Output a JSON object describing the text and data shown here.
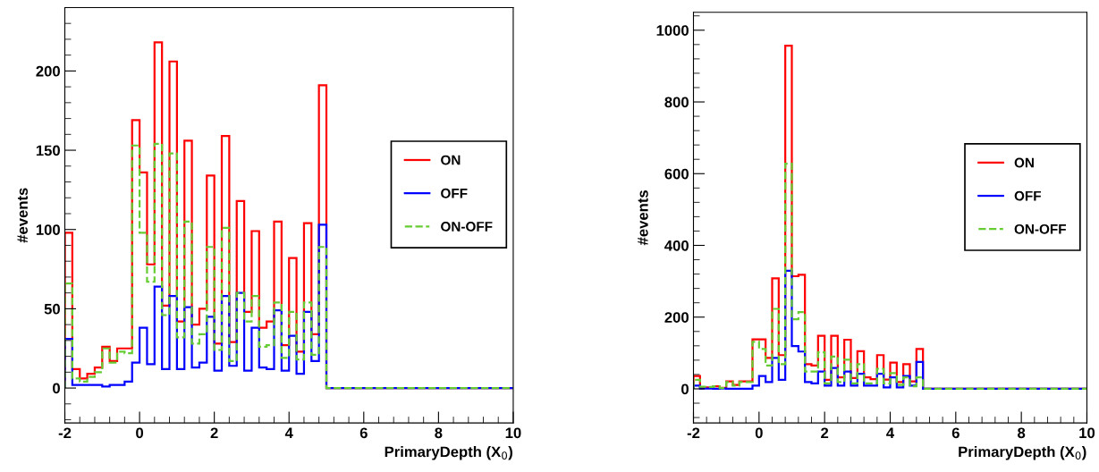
{
  "chart_data": [
    {
      "type": "histogram",
      "xlabel": "PrimaryDepth (X$_{0}$)",
      "ylabel": "#events",
      "bins": [
        -2,
        -1.8,
        -1.6,
        -1.4,
        -1.2,
        -1,
        -0.8,
        -0.6,
        -0.4,
        -0.2,
        0,
        0.2,
        0.4,
        0.6,
        0.8,
        1,
        1.2,
        1.4,
        1.6,
        1.8,
        2,
        2.2,
        2.4,
        2.6,
        2.8,
        3,
        3.2,
        3.4,
        3.6,
        3.8,
        4,
        4.2,
        4.4,
        4.6,
        4.8,
        5,
        5.2,
        5.4,
        5.6,
        5.8,
        6,
        6.2,
        6.4,
        6.6,
        6.8,
        7,
        7.2,
        7.4,
        7.6,
        7.8,
        8,
        8.2,
        8.4,
        8.6,
        8.8,
        9,
        9.2,
        9.4,
        9.6,
        9.8,
        10
      ],
      "series": [
        {
          "name": "ON",
          "color": "#ff0000",
          "line_style": "solid",
          "values": [
            98,
            12,
            6,
            9,
            13,
            26,
            17,
            25,
            25,
            169,
            136,
            78,
            218,
            52,
            206,
            42,
            156,
            40,
            50,
            134,
            28,
            159,
            29,
            118,
            48,
            99,
            38,
            42,
            105,
            27,
            82,
            23,
            104,
            34,
            191,
            0,
            0,
            0,
            0,
            0,
            0,
            0,
            0,
            0,
            0,
            0,
            0,
            0,
            0,
            0,
            0,
            0,
            0,
            0,
            0,
            0,
            0,
            0,
            0,
            0
          ]
        },
        {
          "name": "OFF",
          "color": "#0000ff",
          "line_style": "solid",
          "values": [
            31,
            2,
            2,
            2,
            2,
            1,
            2,
            2,
            4,
            16,
            38,
            15,
            64,
            12,
            58,
            12,
            51,
            13,
            16,
            45,
            11,
            58,
            14,
            60,
            11,
            38,
            13,
            12,
            49,
            11,
            33,
            9,
            48,
            17,
            103,
            0,
            0,
            0,
            0,
            0,
            0,
            0,
            0,
            0,
            0,
            0,
            0,
            0,
            0,
            0,
            0,
            0,
            0,
            0,
            0,
            0,
            0,
            0,
            0,
            0
          ]
        },
        {
          "name": "ON-OFF",
          "color": "#66cc33",
          "line_style": "dashed",
          "values": [
            66,
            6,
            4,
            7,
            10,
            25,
            16,
            23,
            22,
            153,
            98,
            67,
            154,
            46,
            148,
            32,
            105,
            28,
            34,
            89,
            24,
            101,
            17,
            60,
            42,
            58,
            26,
            27,
            54,
            19,
            48,
            18,
            54,
            21,
            89,
            0,
            0,
            0,
            0,
            0,
            0,
            0,
            0,
            0,
            0,
            0,
            0,
            0,
            0,
            0,
            0,
            0,
            0,
            0,
            0,
            0,
            0,
            0,
            0,
            0
          ]
        }
      ],
      "xlim": [
        -2,
        10
      ],
      "xticks": [
        -2,
        0,
        2,
        4,
        6,
        8,
        10
      ],
      "ylim": [
        -22,
        240
      ],
      "yticks": [
        0,
        50,
        100,
        150,
        200
      ],
      "legend": "right",
      "grid": false
    },
    {
      "type": "histogram",
      "xlabel": "PrimaryDepth (X$_{0}$)",
      "ylabel": "#events",
      "bins": [
        -2,
        -1.8,
        -1.6,
        -1.4,
        -1.2,
        -1,
        -0.8,
        -0.6,
        -0.4,
        -0.2,
        0,
        0.2,
        0.4,
        0.6,
        0.8,
        1,
        1.2,
        1.4,
        1.6,
        1.8,
        2,
        2.2,
        2.4,
        2.6,
        2.8,
        3,
        3.2,
        3.4,
        3.6,
        3.8,
        4,
        4.2,
        4.4,
        4.6,
        4.8,
        5,
        5.2,
        5.4,
        5.6,
        5.8,
        6,
        6.2,
        6.4,
        6.6,
        6.8,
        7,
        7.2,
        7.4,
        7.6,
        7.8,
        8,
        8.2,
        8.4,
        8.6,
        8.8,
        9,
        9.2,
        9.4,
        9.6,
        9.8,
        10
      ],
      "series": [
        {
          "name": "ON",
          "color": "#ff0000",
          "line_style": "solid",
          "values": [
            36,
            4,
            4,
            7,
            3,
            21,
            11,
            21,
            21,
            138,
            138,
            86,
            308,
            94,
            957,
            314,
            318,
            69,
            65,
            148,
            25,
            148,
            32,
            137,
            30,
            105,
            32,
            27,
            94,
            26,
            73,
            19,
            69,
            21,
            111,
            0,
            0,
            0,
            0,
            0,
            0,
            0,
            0,
            0,
            0,
            0,
            0,
            0,
            0,
            0,
            0,
            0,
            0,
            0,
            0,
            0,
            0,
            0,
            0,
            0
          ]
        },
        {
          "name": "OFF",
          "color": "#0000ff",
          "line_style": "solid",
          "values": [
            9,
            1,
            1,
            0,
            1,
            0,
            0,
            0,
            0,
            9,
            36,
            19,
            86,
            25,
            329,
            119,
            104,
            19,
            15,
            48,
            9,
            58,
            9,
            48,
            9,
            42,
            9,
            9,
            42,
            4,
            32,
            4,
            36,
            9,
            75,
            0,
            0,
            0,
            0,
            0,
            0,
            0,
            0,
            0,
            0,
            0,
            0,
            0,
            0,
            0,
            0,
            0,
            0,
            0,
            0,
            0,
            0,
            0,
            0,
            0
          ]
        },
        {
          "name": "ON-OFF",
          "color": "#66cc33",
          "line_style": "dashed",
          "values": [
            25,
            6,
            5,
            7,
            2,
            19,
            9,
            19,
            19,
            131,
            111,
            65,
            223,
            69,
            628,
            194,
            214,
            48,
            48,
            102,
            15,
            90,
            19,
            81,
            15,
            69,
            15,
            15,
            56,
            15,
            44,
            11,
            32,
            7,
            32,
            0,
            0,
            0,
            0,
            0,
            0,
            0,
            0,
            0,
            0,
            0,
            0,
            0,
            0,
            0,
            0,
            0,
            0,
            0,
            0,
            0,
            0,
            0,
            0,
            0
          ]
        }
      ],
      "xlim": [
        -2,
        10
      ],
      "xticks": [
        -2,
        0,
        2,
        4,
        6,
        8,
        10
      ],
      "ylim": [
        -95,
        1050
      ],
      "yticks": [
        0,
        200,
        400,
        600,
        800,
        1000
      ],
      "legend": "right",
      "grid": false
    }
  ]
}
